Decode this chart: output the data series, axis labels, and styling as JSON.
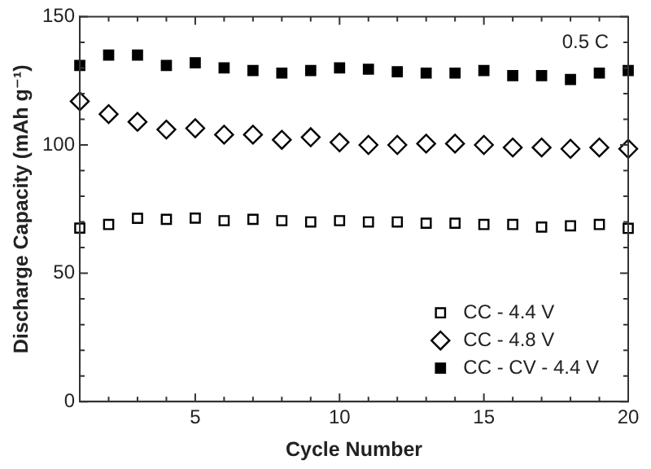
{
  "chart_data": {
    "type": "scatter",
    "xlabel": "Cycle Number",
    "ylabel": "Discharge Capacity (mAh g⁻¹)",
    "x": [
      1,
      2,
      3,
      4,
      5,
      6,
      7,
      8,
      9,
      10,
      11,
      12,
      13,
      14,
      15,
      16,
      17,
      18,
      19,
      20
    ],
    "series": [
      {
        "name": "CC - 4.4 V",
        "color": "#ffffff",
        "marker": "square",
        "values": [
          67.6,
          69,
          71.4,
          71,
          71.5,
          70.5,
          71,
          70.5,
          70,
          70.5,
          70,
          70,
          69.5,
          69.5,
          69,
          69,
          68,
          68.5,
          69,
          67.5
        ]
      },
      {
        "name": "CC - 4.8 V",
        "color": "#ffffff",
        "marker": "diamond",
        "values": [
          117,
          112,
          109,
          106,
          106.5,
          104,
          104,
          102,
          103,
          101,
          100,
          100,
          100.5,
          100.5,
          100,
          99,
          99,
          98.5,
          99,
          98.5
        ]
      },
      {
        "name": "CC - CV - 4.4 V",
        "color": "#000000",
        "marker": "square",
        "values": [
          131,
          135,
          135,
          131,
          132,
          130,
          129,
          128,
          129,
          130,
          129.5,
          128.5,
          128,
          128,
          129,
          127,
          127,
          125.5,
          128,
          129
        ]
      }
    ],
    "xlim": [
      1,
      20
    ],
    "xticks": [
      {
        "value": 2,
        "label": null
      },
      {
        "value": 3,
        "label": null
      },
      {
        "value": 4,
        "label": null
      },
      5,
      {
        "value": 6,
        "label": null
      },
      {
        "value": 7,
        "label": null
      },
      {
        "value": 8,
        "label": null
      },
      {
        "value": 9,
        "label": null
      },
      10,
      {
        "value": 11,
        "label": null
      },
      {
        "value": 12,
        "label": null
      },
      {
        "value": 13,
        "label": null
      },
      {
        "value": 14,
        "label": null
      },
      15,
      {
        "value": 16,
        "label": null
      },
      {
        "value": 17,
        "label": null
      },
      {
        "value": 18,
        "label": null
      },
      {
        "value": 19,
        "label": null
      },
      20
    ],
    "ylim": [
      0,
      150
    ],
    "yticks": [
      0,
      {
        "value": 10,
        "label": null
      },
      {
        "value": 20,
        "label": null
      },
      {
        "value": 30,
        "label": null
      },
      {
        "value": 40,
        "label": null
      },
      50,
      {
        "value": 60,
        "label": null
      },
      {
        "value": 70,
        "label": null
      },
      {
        "value": 80,
        "label": null
      },
      {
        "value": 90,
        "label": null
      },
      100,
      {
        "value": 110,
        "label": null
      },
      {
        "value": 120,
        "label": null
      },
      {
        "value": 130,
        "label": null
      },
      {
        "value": 140,
        "label": null
      },
      150
    ],
    "annotations": [
      "0.5 C"
    ],
    "legend": "bottom right",
    "grid": false
  }
}
